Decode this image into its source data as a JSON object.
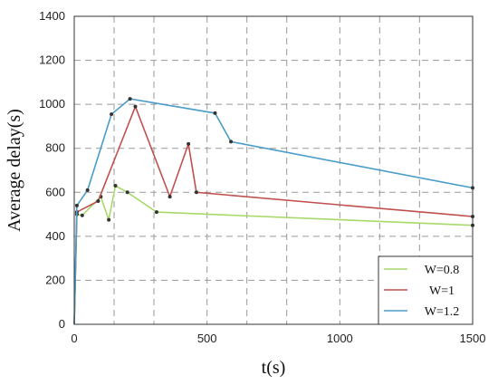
{
  "chart_data": {
    "type": "line",
    "title": "",
    "xlabel": "t(s)",
    "ylabel": "Average delay(s)",
    "xlim": [
      0,
      1500
    ],
    "ylim": [
      0,
      1400
    ],
    "xticks": [
      0,
      500,
      1000,
      1500
    ],
    "yticks": [
      0,
      200,
      400,
      600,
      800,
      1000,
      1200,
      1400
    ],
    "x_grid_lines": [
      0,
      150,
      300,
      500,
      650,
      800,
      1000,
      1150,
      1300,
      1500
    ],
    "grid": true,
    "legend_position": "bottom-right",
    "series": [
      {
        "name": "W=0.8",
        "color": "#a6d96a",
        "points": [
          [
            0,
            0
          ],
          [
            10,
            500
          ],
          [
            30,
            495
          ],
          [
            100,
            580
          ],
          [
            130,
            475
          ],
          [
            155,
            630
          ],
          [
            200,
            600
          ],
          [
            310,
            510
          ],
          [
            1500,
            450
          ]
        ]
      },
      {
        "name": "W=1",
        "color": "#c0504d",
        "points": [
          [
            0,
            0
          ],
          [
            10,
            510
          ],
          [
            90,
            560
          ],
          [
            230,
            990
          ],
          [
            360,
            580
          ],
          [
            430,
            820
          ],
          [
            460,
            600
          ],
          [
            1500,
            490
          ]
        ]
      },
      {
        "name": "W=1.2",
        "color": "#4a9cc9",
        "points": [
          [
            0,
            0
          ],
          [
            10,
            540
          ],
          [
            50,
            610
          ],
          [
            140,
            955
          ],
          [
            210,
            1025
          ],
          [
            530,
            960
          ],
          [
            590,
            830
          ],
          [
            1500,
            620
          ]
        ]
      }
    ]
  }
}
